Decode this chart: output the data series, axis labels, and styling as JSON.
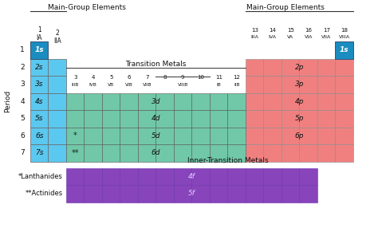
{
  "colors": {
    "s_block_light": "#5bc8f0",
    "s_block_dark": "#1a8cc0",
    "p_block": "#f08080",
    "d_block": "#70c8a8",
    "f_block": "#8844bb",
    "white": "#ffffff"
  },
  "s_labels": [
    "1s",
    "2s",
    "3s",
    "4s",
    "5s",
    "6s",
    "7s"
  ],
  "d_labels": [
    "3d",
    "4d",
    "5d",
    "6d"
  ],
  "p_labels": [
    "2p",
    "3p",
    "4p",
    "5p",
    "6p"
  ],
  "f_labels": [
    "4f",
    "5f"
  ],
  "period_numbers": [
    "1",
    "2",
    "3",
    "4",
    "5",
    "6",
    "7"
  ],
  "col_nums_left": [
    "1",
    "2"
  ],
  "col_labs_left": [
    "IA",
    "IIA"
  ],
  "col_nums_right": [
    "13",
    "14",
    "15",
    "16",
    "17",
    "18"
  ],
  "col_labs_right": [
    "IIIA",
    "IVA",
    "VA",
    "VIA",
    "VIIA",
    "VIIIA"
  ],
  "col_nums_trans": [
    "3",
    "4",
    "5",
    "6",
    "7",
    "8",
    "9",
    "10",
    "11",
    "12"
  ],
  "col_labs_trans": [
    "IIIB",
    "IVB",
    "VB",
    "VIB",
    "VIIB",
    "",
    "VIIIB",
    "",
    "IB",
    "IIB"
  ],
  "title_left": "Main-Group Elements",
  "title_right": "Main-Group Elements",
  "title_trans": "Transition Metals",
  "title_inner": "Inner-Transition Metals",
  "period_label": "Period",
  "footnote1": "*Lanthanides",
  "footnote2": "**Actinides",
  "dot1": "*",
  "dot2": "**"
}
